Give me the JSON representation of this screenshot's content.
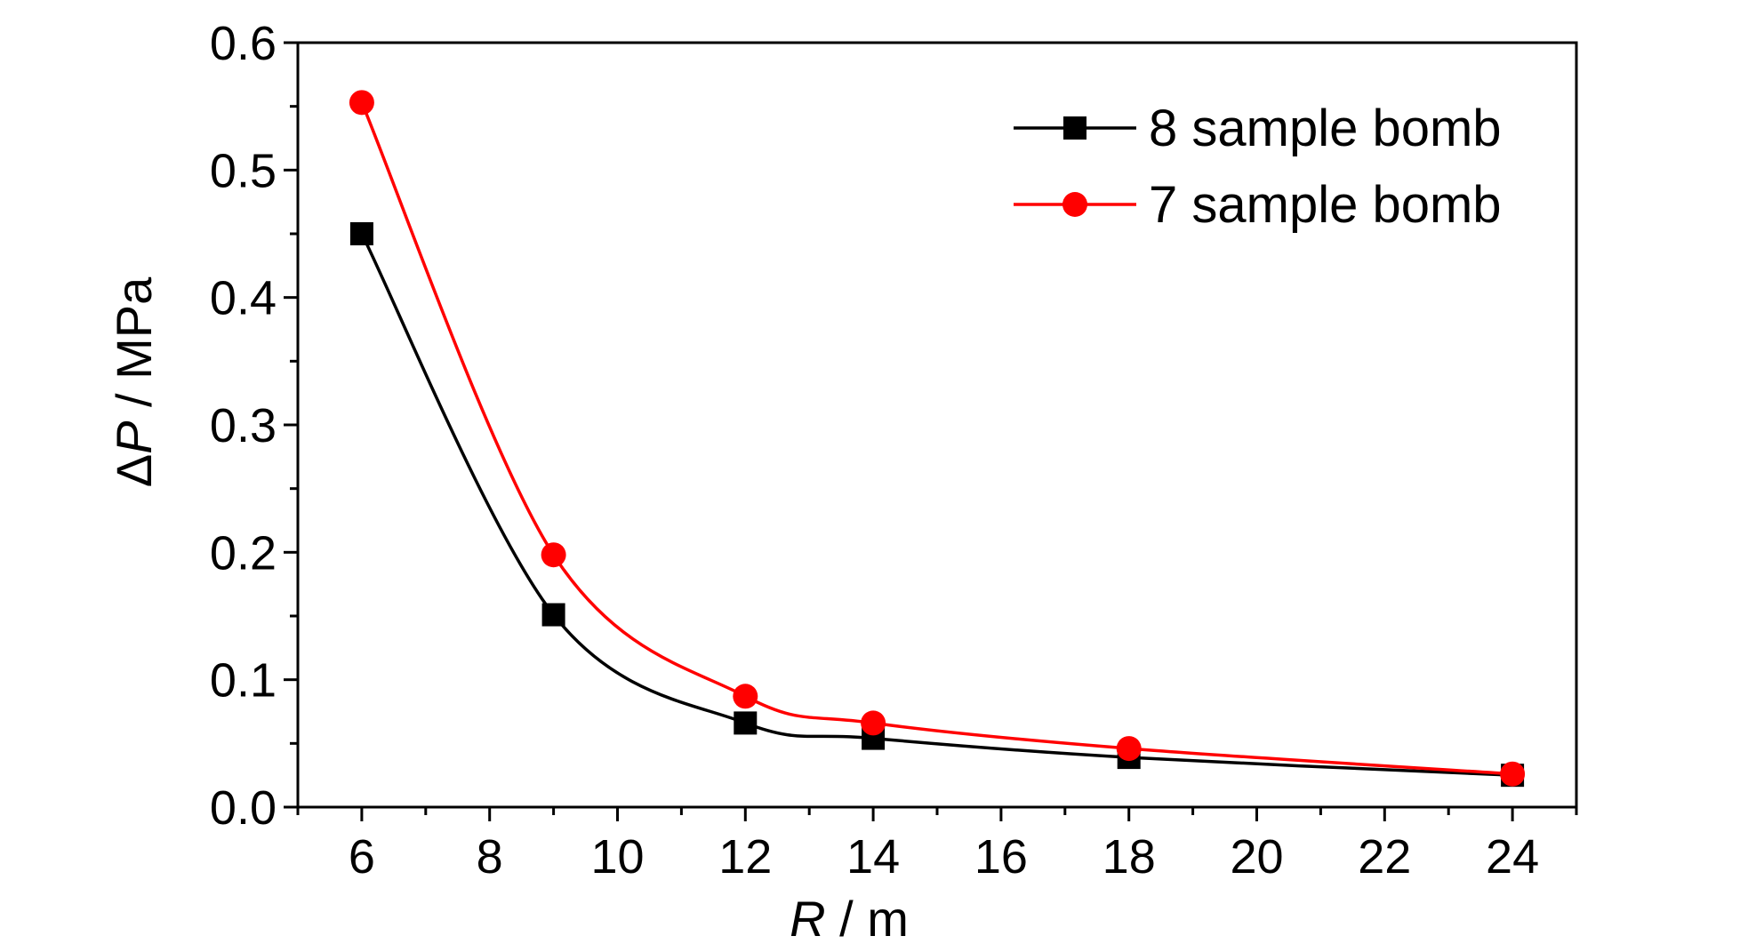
{
  "chart_data": {
    "type": "line",
    "title": "",
    "xlabel": "R / m",
    "xlabel_parts": {
      "symbol": "R",
      "unit": " / m"
    },
    "ylabel": "ΔP / MPa",
    "ylabel_parts": {
      "symbol": "P",
      "prefix": "Δ",
      "unit": " / MPa"
    },
    "xlim": [
      5,
      25
    ],
    "ylim": [
      0,
      0.6
    ],
    "xticks": [
      6,
      8,
      10,
      12,
      14,
      16,
      18,
      20,
      22,
      24
    ],
    "yticks": [
      0.0,
      0.1,
      0.2,
      0.3,
      0.4,
      0.5,
      0.6
    ],
    "ytick_labels": [
      "0.0",
      "0.1",
      "0.2",
      "0.3",
      "0.4",
      "0.5",
      "0.6"
    ],
    "grid": false,
    "legend_position": "top-right",
    "series": [
      {
        "name": "8 sample bomb",
        "color": "#000000",
        "marker": "square",
        "x": [
          6,
          9,
          12,
          14,
          18,
          24
        ],
        "y": [
          0.45,
          0.151,
          0.066,
          0.054,
          0.039,
          0.025
        ]
      },
      {
        "name": "7 sample bomb",
        "color": "#ff0000",
        "marker": "circle",
        "x": [
          6,
          9,
          12,
          14,
          18,
          24
        ],
        "y": [
          0.553,
          0.198,
          0.087,
          0.066,
          0.046,
          0.026
        ]
      }
    ]
  }
}
